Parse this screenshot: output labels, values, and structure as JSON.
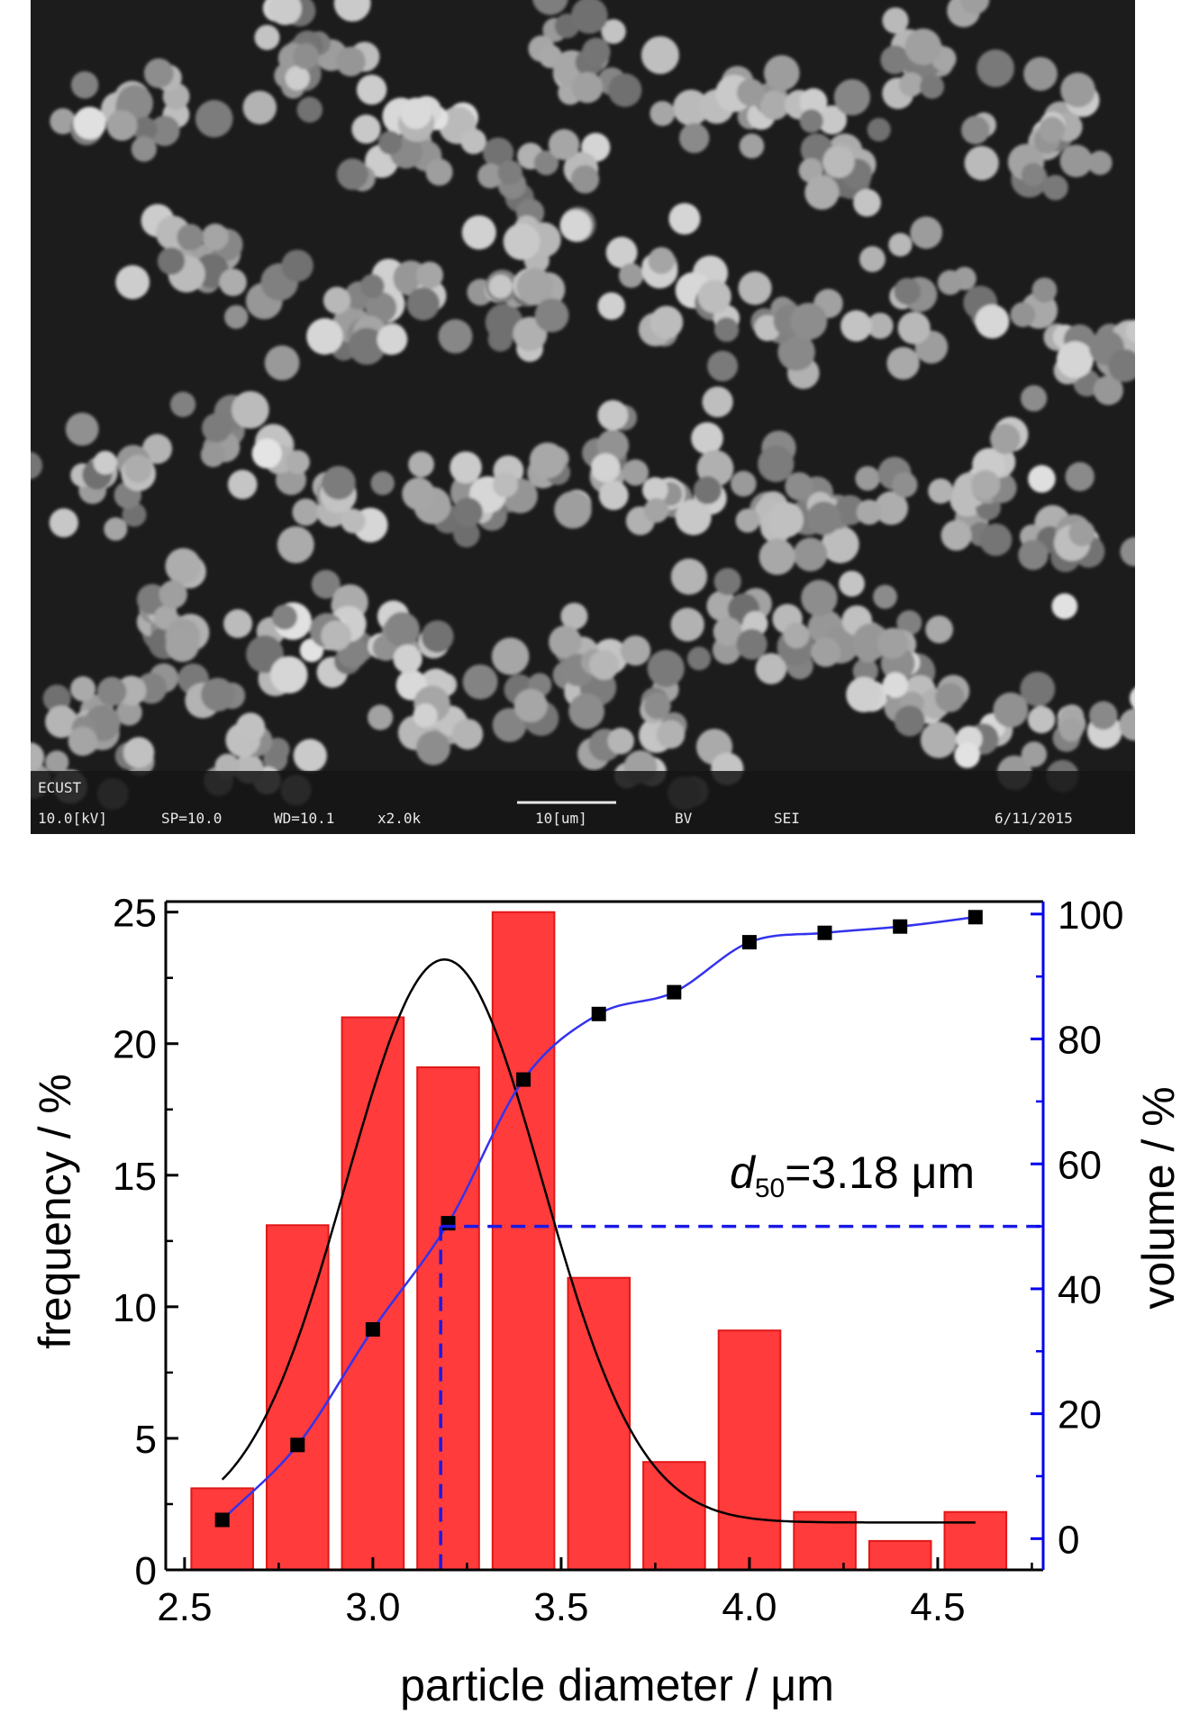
{
  "sem_info": {
    "logo": "ECUST",
    "voltage": "10.0[kV]",
    "spot": "SP=10.0",
    "wd": "WD=10.1",
    "mag": "x2.0k",
    "scalebar": "10[um]",
    "detector": "BV",
    "mode": "SEI",
    "date": "6/11/2015"
  },
  "chart_data": {
    "type": "bar",
    "title": "",
    "xlabel": "particle diameter / μm",
    "ylabel_left": "frequency / %",
    "ylabel_right": "volume / %",
    "xlim": [
      2.45,
      4.78
    ],
    "ylim_left": [
      0,
      25.4
    ],
    "ylim_right": [
      -5,
      102
    ],
    "x_ticks": [
      "2.5",
      "3.0",
      "3.5",
      "4.0",
      "4.5"
    ],
    "x_tick_values": [
      2.5,
      3.0,
      3.5,
      4.0,
      4.5
    ],
    "y_left_ticks": [
      "0",
      "5",
      "10",
      "15",
      "20",
      "25"
    ],
    "y_left_tick_values": [
      0,
      5,
      10,
      15,
      20,
      25
    ],
    "y_right_ticks": [
      "0",
      "20",
      "40",
      "60",
      "80",
      "100"
    ],
    "y_right_tick_values": [
      0,
      20,
      40,
      60,
      80,
      100
    ],
    "bars": {
      "x": [
        2.6,
        2.8,
        3.0,
        3.2,
        3.4,
        3.6,
        3.8,
        4.0,
        4.2,
        4.4,
        4.6
      ],
      "frequency": [
        3.1,
        13.1,
        21.0,
        19.1,
        25.0,
        11.1,
        4.1,
        9.1,
        2.2,
        1.1,
        2.2
      ],
      "color": "#ff3b3b"
    },
    "gaussian_fit": {
      "amplitude": 21.4,
      "center": 3.19,
      "sigma": 0.26,
      "baseline": 1.8,
      "x_range": [
        2.6,
        4.6
      ],
      "color": "#000000"
    },
    "cumulative_volume": {
      "x": [
        2.6,
        2.8,
        3.0,
        3.2,
        3.4,
        3.6,
        3.8,
        4.0,
        4.2,
        4.4,
        4.6
      ],
      "values": [
        3.0,
        15.0,
        33.5,
        50.5,
        73.5,
        84.0,
        87.5,
        95.5,
        97.0,
        98.0,
        99.5
      ],
      "curve_color": "#3333ee",
      "marker_color": "#000000"
    },
    "d50": {
      "label_main": "d",
      "label_sub": "50",
      "label_rest": "=3.18 μm",
      "x": 3.18,
      "volume": 50,
      "color": "#1a1ae6"
    },
    "right_axis_color": "#0000ee"
  }
}
